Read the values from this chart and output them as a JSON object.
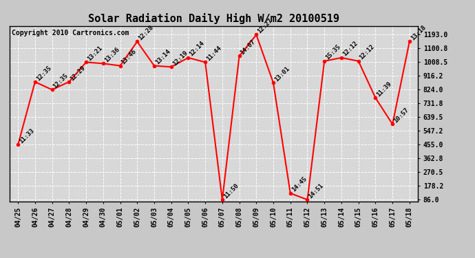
{
  "title": "Solar Radiation Daily High W/m2 20100519",
  "copyright": "Copyright 2010 Cartronics.com",
  "dates": [
    "04/25",
    "04/26",
    "04/27",
    "04/28",
    "04/29",
    "04/30",
    "05/01",
    "05/02",
    "05/03",
    "05/04",
    "05/05",
    "05/06",
    "05/07",
    "05/08",
    "05/09",
    "05/10",
    "05/11",
    "05/12",
    "05/13",
    "05/14",
    "05/15",
    "05/16",
    "05/17",
    "05/18"
  ],
  "values": [
    455.0,
    877.0,
    824.0,
    877.0,
    1008.5,
    1000.0,
    985.0,
    1147.0,
    985.0,
    977.0,
    1039.0,
    1008.5,
    86.0,
    1050.0,
    1193.0,
    870.0,
    130.0,
    86.0,
    1016.0,
    1039.0,
    1016.0,
    770.0,
    593.0,
    1147.0
  ],
  "labels": [
    "11:33",
    "12:35",
    "12:35",
    "12:29",
    "13:21",
    "13:36",
    "13:46",
    "12:28",
    "13:14",
    "12:19",
    "12:14",
    "11:44",
    "11:50",
    "14:07",
    "12:27",
    "13:01",
    "14:45",
    "14:51",
    "15:35",
    "12:12",
    "12:12",
    "11:39",
    "10:57",
    "13:18"
  ],
  "ymin": 86.0,
  "ymax": 1193.0,
  "yticks": [
    86.0,
    178.2,
    270.5,
    362.8,
    455.0,
    547.2,
    639.5,
    731.8,
    824.0,
    916.2,
    1008.5,
    1100.8,
    1193.0
  ],
  "line_color": "red",
  "marker_color": "red",
  "fig_bg_color": "#c8c8c8",
  "plot_bg_color": "#d8d8d8",
  "grid_color": "#ffffff",
  "title_fontsize": 11,
  "label_fontsize": 6.5,
  "tick_fontsize": 7,
  "copyright_fontsize": 7
}
